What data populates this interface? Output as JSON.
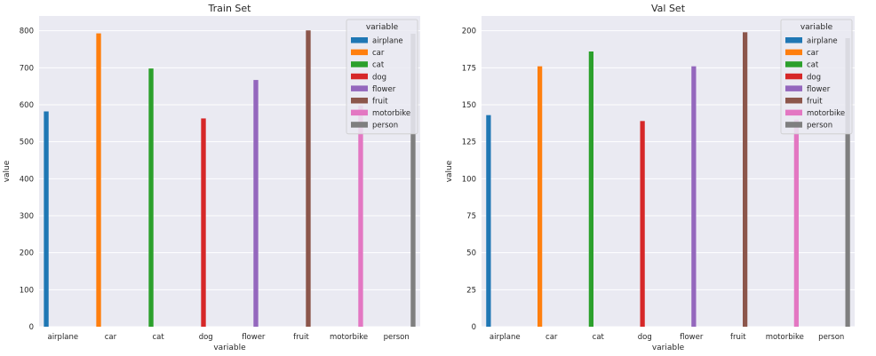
{
  "chart_data": [
    {
      "type": "bar",
      "title": "Train Set",
      "xlabel": "variable",
      "ylabel": "value",
      "categories": [
        "airplane",
        "car",
        "cat",
        "dog",
        "flower",
        "fruit",
        "motorbike",
        "person"
      ],
      "series": [
        {
          "name": "airplane",
          "color": "#1f77b4",
          "values": [
            582,
            null,
            null,
            null,
            null,
            null,
            null,
            null
          ]
        },
        {
          "name": "car",
          "color": "#ff7f0e",
          "values": [
            null,
            793,
            null,
            null,
            null,
            null,
            null,
            null
          ]
        },
        {
          "name": "cat",
          "color": "#2ca02c",
          "values": [
            null,
            null,
            698,
            null,
            null,
            null,
            null,
            null
          ]
        },
        {
          "name": "dog",
          "color": "#d62728",
          "values": [
            null,
            null,
            null,
            563,
            null,
            null,
            null,
            null
          ]
        },
        {
          "name": "flower",
          "color": "#9467bd",
          "values": [
            null,
            null,
            null,
            null,
            667,
            null,
            null,
            null
          ]
        },
        {
          "name": "fruit",
          "color": "#8c564b",
          "values": [
            null,
            null,
            null,
            null,
            null,
            801,
            null,
            null
          ]
        },
        {
          "name": "motorbike",
          "color": "#e377c2",
          "values": [
            null,
            null,
            null,
            null,
            null,
            null,
            598,
            null
          ]
        },
        {
          "name": "person",
          "color": "#7f7f7f",
          "values": [
            null,
            null,
            null,
            null,
            null,
            null,
            null,
            792
          ]
        }
      ],
      "yticks": [
        0,
        100,
        200,
        300,
        400,
        500,
        600,
        700,
        800
      ],
      "ylim": [
        0,
        840
      ],
      "grid": true,
      "legend": {
        "title": "variable",
        "placement": "top-right"
      }
    },
    {
      "type": "bar",
      "title": "Val Set",
      "xlabel": "variable",
      "ylabel": "value",
      "categories": [
        "airplane",
        "car",
        "cat",
        "dog",
        "flower",
        "fruit",
        "motorbike",
        "person"
      ],
      "series": [
        {
          "name": "airplane",
          "color": "#1f77b4",
          "values": [
            143,
            null,
            null,
            null,
            null,
            null,
            null,
            null
          ]
        },
        {
          "name": "car",
          "color": "#ff7f0e",
          "values": [
            null,
            176,
            null,
            null,
            null,
            null,
            null,
            null
          ]
        },
        {
          "name": "cat",
          "color": "#2ca02c",
          "values": [
            null,
            null,
            186,
            null,
            null,
            null,
            null,
            null
          ]
        },
        {
          "name": "dog",
          "color": "#d62728",
          "values": [
            null,
            null,
            null,
            139,
            null,
            null,
            null,
            null
          ]
        },
        {
          "name": "flower",
          "color": "#9467bd",
          "values": [
            null,
            null,
            null,
            null,
            176,
            null,
            null,
            null
          ]
        },
        {
          "name": "fruit",
          "color": "#8c564b",
          "values": [
            null,
            null,
            null,
            null,
            null,
            199,
            null,
            null
          ]
        },
        {
          "name": "motorbike",
          "color": "#e377c2",
          "values": [
            null,
            null,
            null,
            null,
            null,
            null,
            140,
            null
          ]
        },
        {
          "name": "person",
          "color": "#7f7f7f",
          "values": [
            null,
            null,
            null,
            null,
            null,
            null,
            null,
            195
          ]
        }
      ],
      "yticks": [
        0,
        25,
        50,
        75,
        100,
        125,
        150,
        175,
        200
      ],
      "ylim": [
        0,
        210
      ],
      "grid": true,
      "legend": {
        "title": "variable",
        "placement": "top-right"
      }
    }
  ]
}
